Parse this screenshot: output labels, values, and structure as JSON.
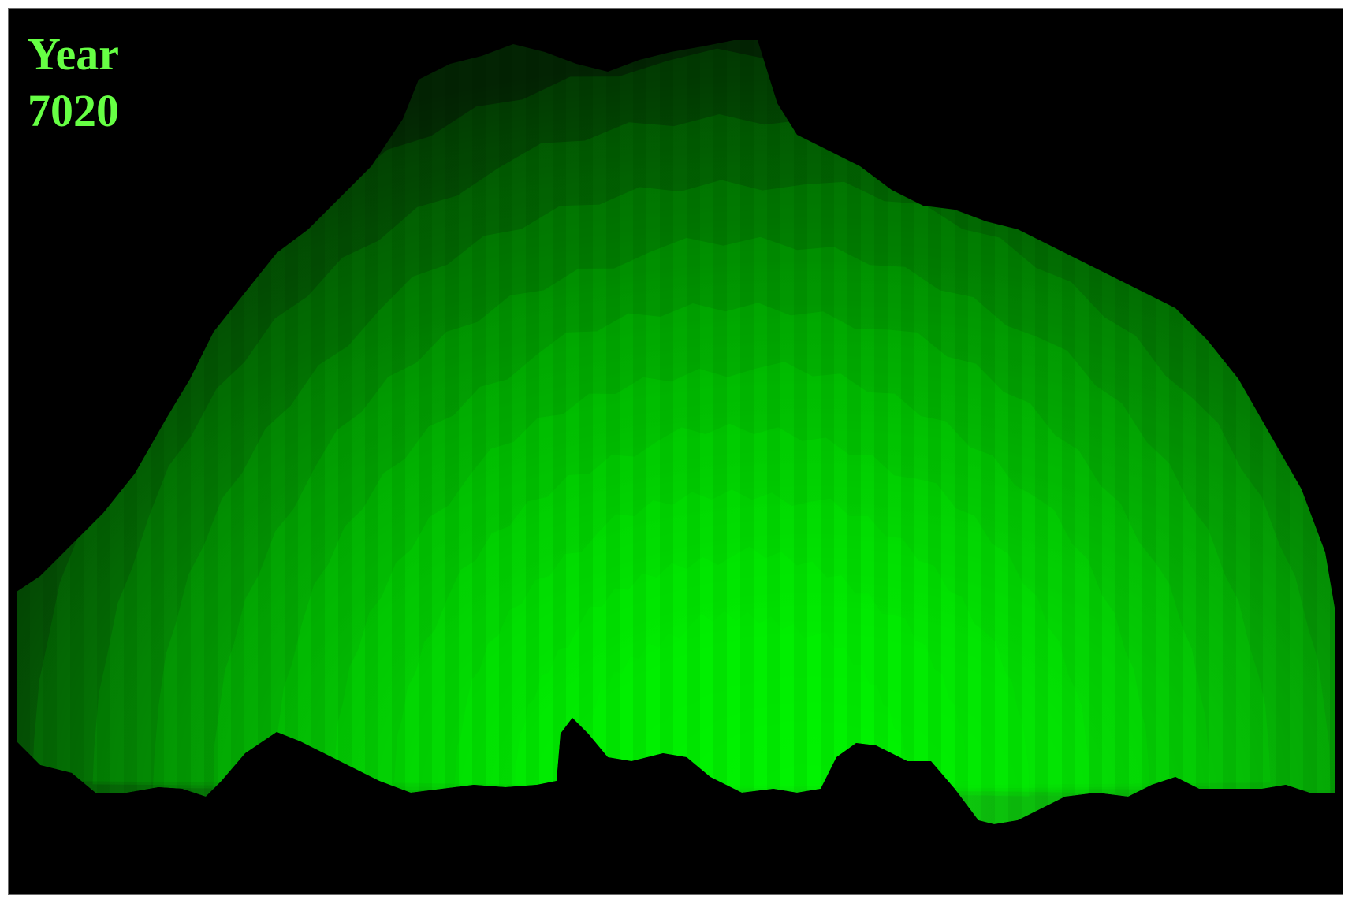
{
  "overlay": {
    "line1": "Year",
    "line2": "7020"
  },
  "colors": {
    "background": "#000000",
    "label": "#66ff44",
    "band_dark": "#032403",
    "band_bright": "#0fd60f"
  },
  "icons": [
    "terrain-visualization"
  ]
}
